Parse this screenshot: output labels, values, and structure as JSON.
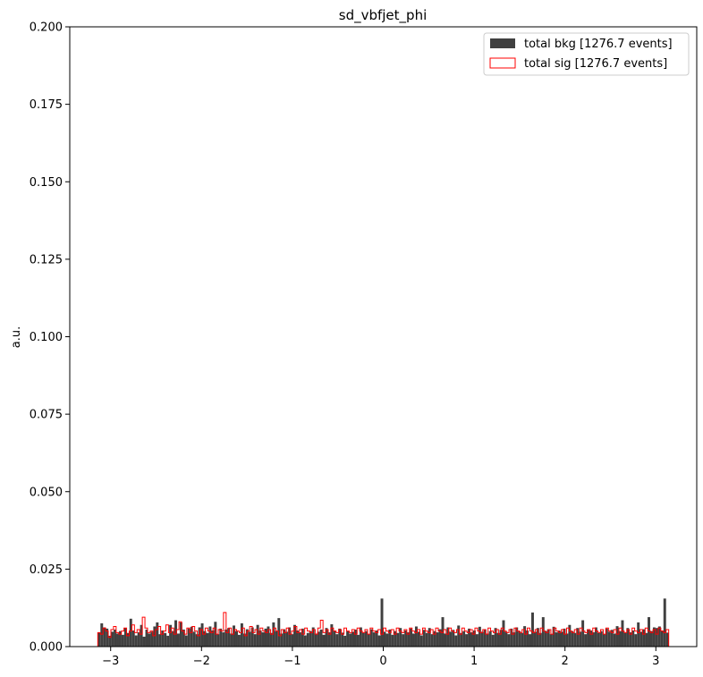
{
  "chart_data": {
    "type": "bar",
    "title": "sd_vbfjet_phi",
    "xlabel": "",
    "ylabel": "a.u.",
    "xlim": [
      -3.45,
      3.45
    ],
    "ylim": [
      0,
      0.2
    ],
    "x_ticks": [
      -3,
      -2,
      -1,
      0,
      1,
      2,
      3
    ],
    "x_tick_labels": [
      "−3",
      "−2",
      "−1",
      "0",
      "1",
      "2",
      "3"
    ],
    "y_ticks": [
      0,
      0.025,
      0.05,
      0.075,
      0.1,
      0.125,
      0.15,
      0.175,
      0.2
    ],
    "y_tick_labels": [
      "0.000",
      "0.025",
      "0.050",
      "0.075",
      "0.100",
      "0.125",
      "0.150",
      "0.175",
      "0.200"
    ],
    "bin_range": [
      -3.1416,
      3.1416
    ],
    "legend_position": "upper-right",
    "series": [
      {
        "name": "total bkg [1276.7 events]",
        "style": "filled",
        "color": "#404040",
        "values": [
          0.0045,
          0.0075,
          0.0062,
          0.0058,
          0.0035,
          0.0048,
          0.0055,
          0.0042,
          0.005,
          0.0038,
          0.006,
          0.0044,
          0.009,
          0.0052,
          0.0036,
          0.0046,
          0.007,
          0.0032,
          0.0055,
          0.0042,
          0.0048,
          0.0065,
          0.0078,
          0.004,
          0.0052,
          0.0044,
          0.0035,
          0.007,
          0.005,
          0.0085,
          0.0042,
          0.0078,
          0.0055,
          0.0036,
          0.0058,
          0.0064,
          0.0048,
          0.004,
          0.0062,
          0.0075,
          0.005,
          0.0044,
          0.0065,
          0.0052,
          0.008,
          0.004,
          0.0058,
          0.0046,
          0.0055,
          0.006,
          0.0042,
          0.0068,
          0.005,
          0.0038,
          0.0075,
          0.0042,
          0.0056,
          0.0048,
          0.0062,
          0.004,
          0.007,
          0.0052,
          0.0046,
          0.0058,
          0.0065,
          0.0044,
          0.0078,
          0.005,
          0.0092,
          0.0042,
          0.0056,
          0.0048,
          0.0062,
          0.004,
          0.007,
          0.0052,
          0.0046,
          0.0058,
          0.0036,
          0.0044,
          0.005,
          0.0062,
          0.0042,
          0.0048,
          0.0055,
          0.0038,
          0.006,
          0.0046,
          0.0072,
          0.0052,
          0.004,
          0.0058,
          0.0045,
          0.0035,
          0.005,
          0.0042,
          0.0048,
          0.0055,
          0.0038,
          0.0062,
          0.0044,
          0.005,
          0.004,
          0.0056,
          0.0046,
          0.0052,
          0.0036,
          0.0155,
          0.0048,
          0.0042,
          0.0055,
          0.0038,
          0.005,
          0.0044,
          0.006,
          0.004,
          0.0052,
          0.0046,
          0.0058,
          0.0042,
          0.0065,
          0.0048,
          0.0036,
          0.0054,
          0.0044,
          0.006,
          0.004,
          0.005,
          0.0046,
          0.0056,
          0.0095,
          0.0042,
          0.0062,
          0.0048,
          0.0054,
          0.0036,
          0.0068,
          0.0044,
          0.005,
          0.004,
          0.0058,
          0.0046,
          0.0052,
          0.004,
          0.0064,
          0.0048,
          0.0056,
          0.0042,
          0.005,
          0.0038,
          0.006,
          0.0044,
          0.0054,
          0.0085,
          0.0048,
          0.004,
          0.0058,
          0.0046,
          0.0062,
          0.005,
          0.0044,
          0.0066,
          0.0052,
          0.004,
          0.011,
          0.0048,
          0.006,
          0.0044,
          0.0095,
          0.005,
          0.0056,
          0.004,
          0.0064,
          0.0046,
          0.0052,
          0.0048,
          0.0058,
          0.0042,
          0.007,
          0.005,
          0.0044,
          0.006,
          0.0048,
          0.0085,
          0.004,
          0.0056,
          0.0052,
          0.0046,
          0.0062,
          0.0044,
          0.005,
          0.004,
          0.0058,
          0.0048,
          0.0054,
          0.0042,
          0.0066,
          0.005,
          0.0085,
          0.0044,
          0.006,
          0.0046,
          0.0052,
          0.004,
          0.0078,
          0.0048,
          0.0056,
          0.0044,
          0.0095,
          0.005,
          0.0062,
          0.006,
          0.0065,
          0.0052,
          0.0155,
          0.0045
        ]
      },
      {
        "name": "total sig [1276.7 events]",
        "style": "step",
        "color": "#ff0000",
        "values": [
          0.0045,
          0.004,
          0.006,
          0.005,
          0.003,
          0.0055,
          0.0065,
          0.0045,
          0.004,
          0.005,
          0.006,
          0.0035,
          0.005,
          0.007,
          0.0045,
          0.0055,
          0.004,
          0.0095,
          0.006,
          0.0045,
          0.005,
          0.0035,
          0.0055,
          0.0065,
          0.004,
          0.005,
          0.007,
          0.0045,
          0.006,
          0.004,
          0.0055,
          0.008,
          0.005,
          0.004,
          0.006,
          0.0045,
          0.0065,
          0.005,
          0.0035,
          0.0055,
          0.004,
          0.006,
          0.005,
          0.0045,
          0.006,
          0.004,
          0.0055,
          0.005,
          0.011,
          0.0045,
          0.006,
          0.004,
          0.0055,
          0.005,
          0.0045,
          0.006,
          0.0035,
          0.005,
          0.0065,
          0.0045,
          0.0055,
          0.004,
          0.006,
          0.005,
          0.0045,
          0.0055,
          0.004,
          0.006,
          0.005,
          0.0035,
          0.0055,
          0.0045,
          0.006,
          0.004,
          0.005,
          0.0065,
          0.0045,
          0.0055,
          0.004,
          0.006,
          0.005,
          0.0045,
          0.0055,
          0.004,
          0.006,
          0.0085,
          0.0045,
          0.0055,
          0.004,
          0.006,
          0.005,
          0.0045,
          0.0055,
          0.004,
          0.006,
          0.005,
          0.0045,
          0.0055,
          0.004,
          0.006,
          0.005,
          0.0045,
          0.0055,
          0.004,
          0.006,
          0.005,
          0.0045,
          0.0055,
          0.004,
          0.006,
          0.005,
          0.0045,
          0.0055,
          0.004,
          0.006,
          0.005,
          0.0045,
          0.0055,
          0.004,
          0.006,
          0.005,
          0.0045,
          0.0055,
          0.004,
          0.006,
          0.005,
          0.0045,
          0.0055,
          0.004,
          0.006,
          0.005,
          0.0045,
          0.0055,
          0.004,
          0.006,
          0.005,
          0.0045,
          0.0055,
          0.004,
          0.006,
          0.005,
          0.0045,
          0.0055,
          0.004,
          0.006,
          0.005,
          0.0045,
          0.0055,
          0.004,
          0.006,
          0.005,
          0.0045,
          0.0055,
          0.004,
          0.006,
          0.005,
          0.0045,
          0.0055,
          0.004,
          0.006,
          0.005,
          0.0045,
          0.0055,
          0.004,
          0.006,
          0.005,
          0.0045,
          0.0055,
          0.004,
          0.006,
          0.005,
          0.0045,
          0.0055,
          0.004,
          0.006,
          0.005,
          0.0045,
          0.0055,
          0.004,
          0.006,
          0.005,
          0.0045,
          0.0055,
          0.004,
          0.006,
          0.005,
          0.0045,
          0.0055,
          0.004,
          0.006,
          0.005,
          0.0045,
          0.0055,
          0.004,
          0.006,
          0.005,
          0.0045,
          0.0055,
          0.004,
          0.006,
          0.005,
          0.0045,
          0.0055,
          0.004,
          0.006,
          0.005,
          0.0045,
          0.0055,
          0.004,
          0.006,
          0.005,
          0.0045,
          0.0055,
          0.004,
          0.006,
          0.005,
          0.0045,
          0.0055
        ]
      }
    ]
  }
}
